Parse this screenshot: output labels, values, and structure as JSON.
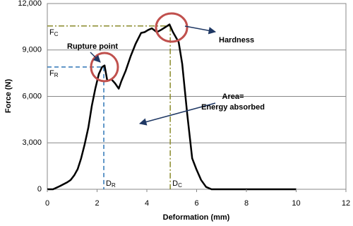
{
  "chart_data": {
    "type": "line",
    "x_label": "Deformation (mm)",
    "y_label": "Force (N)",
    "x": [
      0,
      0.23,
      0.5,
      0.8,
      0.94,
      1.08,
      1.22,
      1.36,
      1.5,
      1.65,
      1.79,
      1.93,
      2.07,
      2.2,
      2.3,
      2.41,
      2.58,
      2.72,
      2.87,
      2.98,
      3.15,
      3.35,
      3.55,
      3.77,
      3.91,
      4.06,
      4.2,
      4.4,
      4.57,
      4.77,
      4.91,
      5.05,
      5.28,
      5.42,
      5.62,
      5.82,
      5.99,
      6.18,
      6.38,
      6.6,
      10
    ],
    "values": [
      0,
      0,
      200,
      450,
      600,
      900,
      1300,
      2000,
      2900,
      4000,
      5400,
      6500,
      7450,
      7900,
      8000,
      7000,
      7100,
      6850,
      6500,
      7000,
      7650,
      8600,
      9400,
      10100,
      10150,
      10300,
      10400,
      10150,
      10300,
      10500,
      10650,
      10150,
      9500,
      8100,
      4900,
      2000,
      1300,
      600,
      150,
      0,
      0
    ],
    "color": "#000000",
    "xlim": [
      0,
      12
    ],
    "xticks": [
      0,
      2,
      4,
      6,
      8,
      10,
      12
    ],
    "ylim": [
      0,
      12000
    ],
    "yticks": [
      0,
      {
        "value": 3000,
        "label": "3,000"
      },
      {
        "value": 6000,
        "label": "6,000"
      },
      {
        "value": 9000,
        "label": "9,000"
      },
      {
        "value": 12000,
        "label": "12,000"
      }
    ],
    "grid": true,
    "reference_points": [
      {
        "x": 2.27,
        "y": 7900,
        "color": "#2e75b6",
        "x_main": "D",
        "x_sub": "R",
        "y_main": "F",
        "y_sub": "R"
      },
      {
        "x": 4.94,
        "y": 10550,
        "color": "#8a8a2a",
        "x_main": "D",
        "x_sub": "C",
        "y_main": "F",
        "y_sub": "C"
      }
    ],
    "annotations": {
      "rupture": "Rupture point",
      "hardness": "Hardness",
      "area": [
        "Area=",
        "Energy absorbed"
      ]
    }
  }
}
